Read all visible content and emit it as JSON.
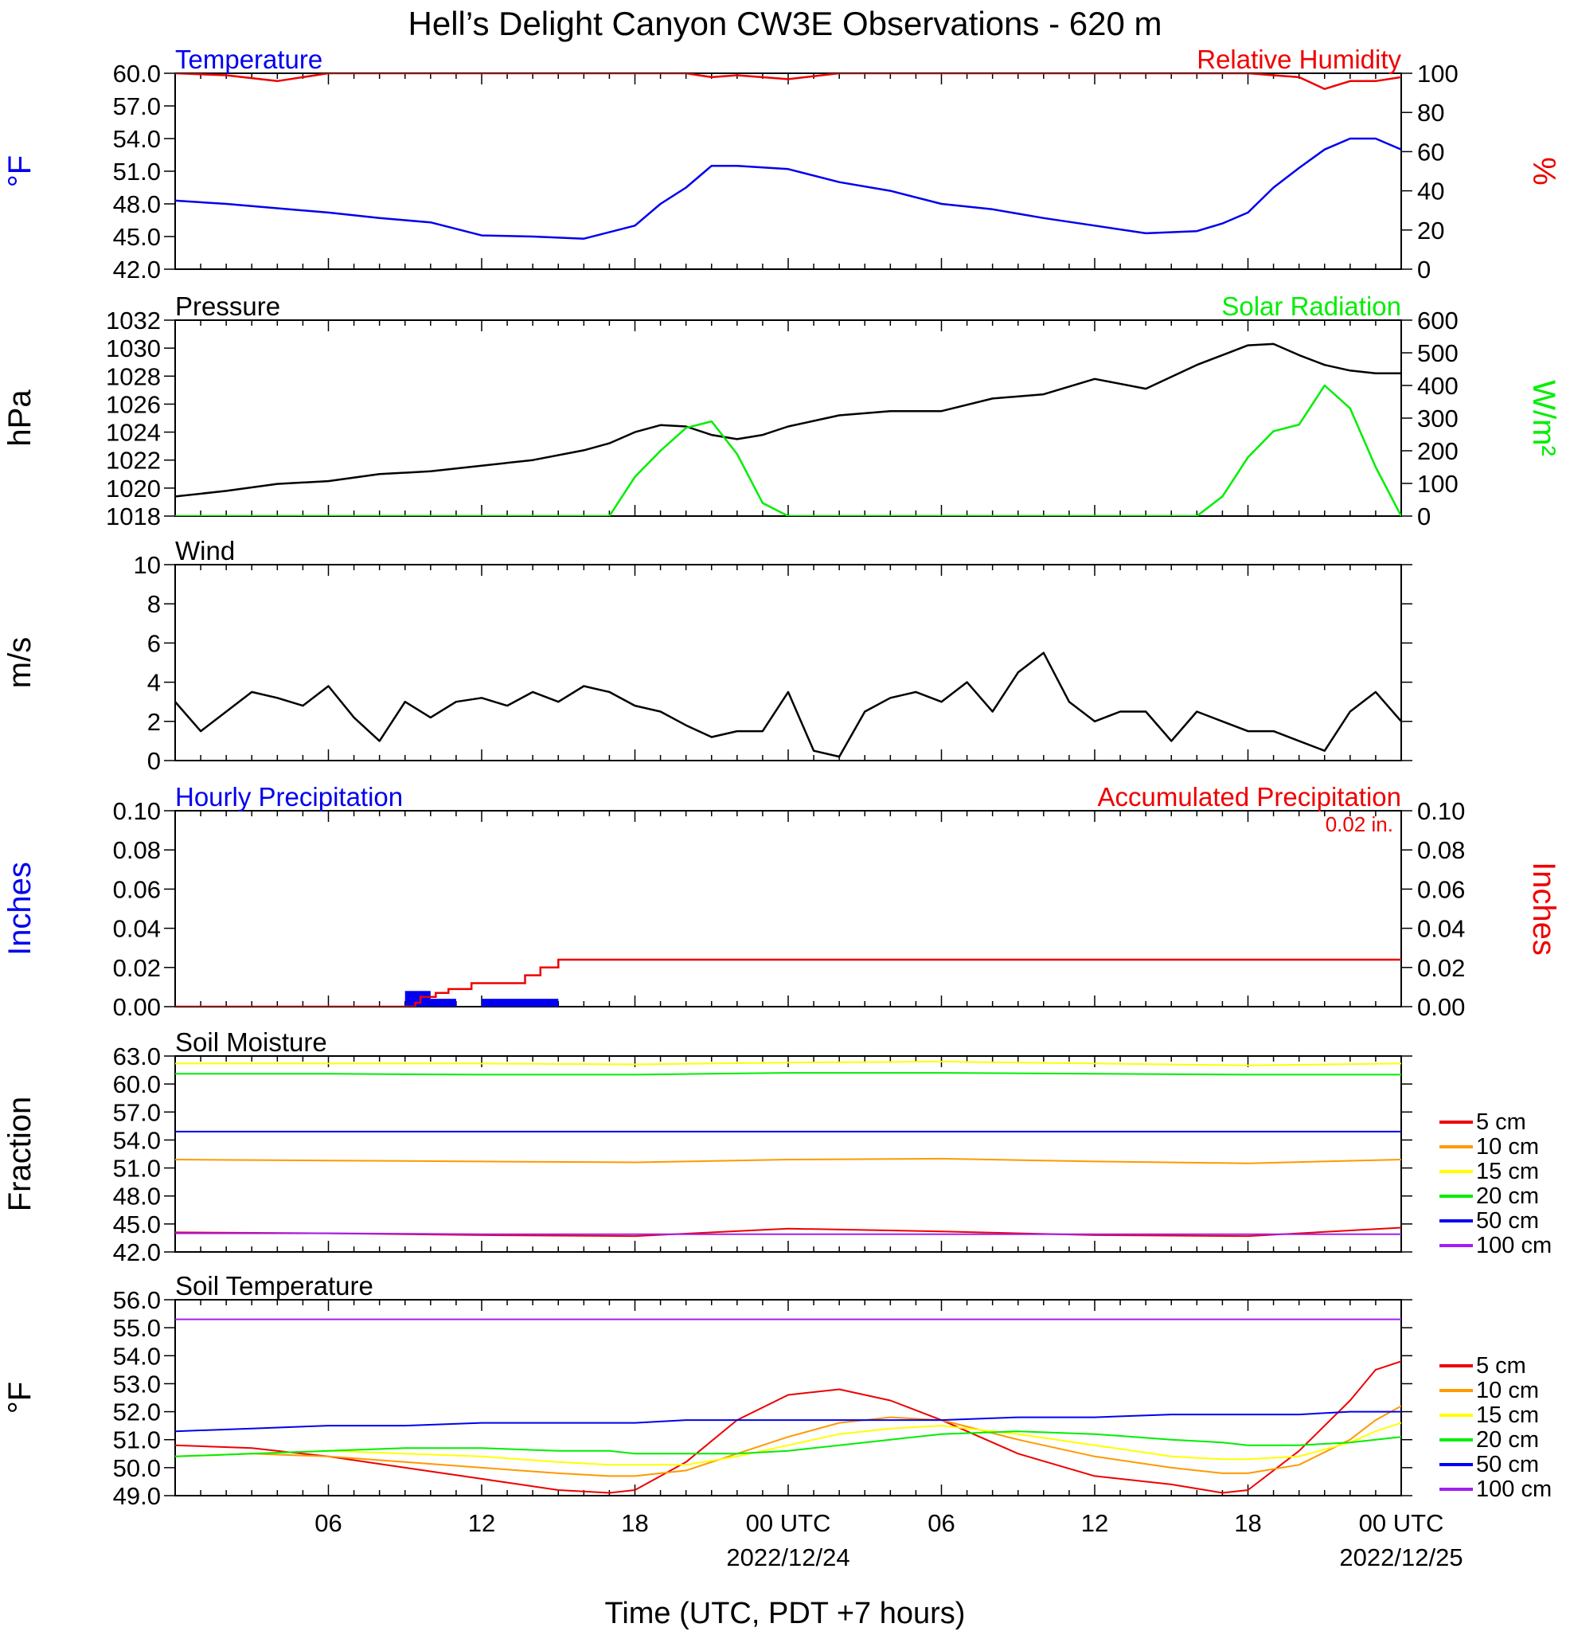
{
  "title": "Hell’s Delight Canyon CW3E Observations - 620 m",
  "x_axis": {
    "label": "Time (UTC, PDT +7 hours)",
    "ticks": [
      "06",
      "12",
      "18",
      "00 UTC",
      "06",
      "12",
      "18",
      "00 UTC"
    ],
    "dates": [
      "2022/12/24",
      "2022/12/25"
    ]
  },
  "colors": {
    "blue": "#0000ee",
    "red": "#ee0000",
    "green": "#00ee00",
    "black": "#000000",
    "orange": "#ff9900",
    "yellow": "#ffff00",
    "purple": "#a020f0"
  },
  "chart_data": [
    {
      "type": "line",
      "title_left": "Temperature",
      "title_right": "Relative Humidity",
      "ylabel_left": "°F",
      "ylabel_right": "%",
      "ylim_left": [
        42,
        60
      ],
      "ylim_right": [
        0,
        100
      ],
      "yticks_left": [
        "42.0",
        "45.0",
        "48.0",
        "51.0",
        "54.0",
        "57.0",
        "60.0"
      ],
      "yticks_right": [
        "0",
        "20",
        "40",
        "60",
        "80",
        "100"
      ],
      "x_hours": [
        0,
        2,
        4,
        6,
        8,
        10,
        12,
        14,
        16,
        18,
        19,
        20,
        21,
        22,
        24,
        26,
        28,
        30,
        32,
        34,
        36,
        38,
        40,
        41,
        42,
        43,
        44,
        45,
        46,
        47,
        48
      ],
      "series": [
        {
          "name": "Temperature",
          "axis": "left",
          "color": "#0000ee",
          "values": [
            48.3,
            48.0,
            47.6,
            47.2,
            46.7,
            46.3,
            45.1,
            45.0,
            44.8,
            46.0,
            48.0,
            49.5,
            51.5,
            51.5,
            51.2,
            50.0,
            49.2,
            48.0,
            47.5,
            46.7,
            46.0,
            45.3,
            45.5,
            46.2,
            47.2,
            49.5,
            51.3,
            53.0,
            54.0,
            54.0,
            53.0
          ]
        },
        {
          "name": "Relative Humidity",
          "axis": "right",
          "color": "#ee0000",
          "values": [
            100,
            99,
            96,
            100,
            100,
            100,
            100,
            100,
            100,
            100,
            100,
            100,
            98,
            99,
            97,
            100,
            100,
            100,
            100,
            100,
            100,
            100,
            100,
            100,
            100,
            99,
            98,
            92,
            96,
            96,
            98
          ]
        }
      ]
    },
    {
      "type": "line",
      "title_left": "Pressure",
      "title_right": "Solar Radiation",
      "ylabel_left": "hPa",
      "ylabel_right": "W/m²",
      "ylim_left": [
        1018,
        1032
      ],
      "ylim_right": [
        0,
        600
      ],
      "yticks_left": [
        "1018",
        "1020",
        "1022",
        "1024",
        "1026",
        "1028",
        "1030",
        "1032"
      ],
      "yticks_right": [
        "0",
        "100",
        "200",
        "300",
        "400",
        "500",
        "600"
      ],
      "x_hours": [
        0,
        2,
        4,
        6,
        8,
        10,
        12,
        14,
        16,
        17,
        18,
        19,
        20,
        21,
        22,
        23,
        24,
        25,
        26,
        28,
        30,
        32,
        34,
        36,
        38,
        40,
        41,
        42,
        43,
        44,
        45,
        46,
        47,
        48
      ],
      "series": [
        {
          "name": "Pressure",
          "axis": "left",
          "color": "#000000",
          "values": [
            1019.4,
            1019.8,
            1020.3,
            1020.5,
            1021.0,
            1021.2,
            1021.6,
            1022.0,
            1022.7,
            1023.2,
            1024.0,
            1024.5,
            1024.4,
            1023.8,
            1023.5,
            1023.8,
            1024.4,
            1024.8,
            1025.2,
            1025.5,
            1025.5,
            1026.4,
            1026.7,
            1027.8,
            1027.1,
            1028.8,
            1029.5,
            1030.2,
            1030.3,
            1029.5,
            1028.8,
            1028.4,
            1028.2,
            1028.2
          ]
        },
        {
          "name": "Solar Radiation",
          "axis": "right",
          "color": "#00ee00",
          "values": [
            0,
            0,
            0,
            0,
            0,
            0,
            0,
            0,
            0,
            0,
            120,
            200,
            270,
            290,
            190,
            40,
            0,
            0,
            0,
            0,
            0,
            0,
            0,
            0,
            0,
            0,
            60,
            180,
            260,
            280,
            400,
            330,
            150,
            0
          ]
        }
      ]
    },
    {
      "type": "line",
      "title_left": "Wind",
      "ylabel_left": "m/s",
      "ylim_left": [
        0,
        10
      ],
      "yticks_left": [
        "0",
        "2",
        "4",
        "6",
        "8",
        "10"
      ],
      "x_hours": [
        0,
        1,
        2,
        3,
        4,
        5,
        6,
        7,
        8,
        9,
        10,
        11,
        12,
        13,
        14,
        15,
        16,
        17,
        18,
        19,
        20,
        21,
        22,
        23,
        24,
        25,
        26,
        27,
        28,
        29,
        30,
        31,
        32,
        33,
        34,
        35,
        36,
        37,
        38,
        39,
        40,
        41,
        42,
        43,
        44,
        45,
        46,
        47,
        48
      ],
      "series": [
        {
          "name": "Wind speed",
          "axis": "left",
          "color": "#000000",
          "values": [
            3.0,
            1.5,
            2.5,
            3.5,
            3.2,
            2.8,
            3.8,
            2.2,
            1.0,
            3.0,
            2.2,
            3.0,
            3.2,
            2.8,
            3.5,
            3.0,
            3.8,
            3.5,
            2.8,
            2.5,
            1.8,
            1.2,
            1.5,
            1.5,
            3.5,
            0.5,
            0.2,
            2.5,
            3.2,
            3.5,
            3.0,
            4.0,
            2.5,
            4.5,
            5.5,
            3.0,
            2.0,
            2.5,
            2.5,
            1.0,
            2.5,
            2.0,
            1.5,
            1.5,
            1.0,
            0.5,
            2.5,
            3.5,
            2.0
          ]
        }
      ]
    },
    {
      "type": "bar",
      "title_left": "Hourly Precipitation",
      "title_right": "Accumulated Precipitation",
      "total_label": "0.02 in.",
      "ylabel_left": "Inches",
      "ylabel_right": "Inches",
      "ylim_left": [
        0,
        0.1
      ],
      "ylim_right": [
        0,
        0.1
      ],
      "yticks_left": [
        "0.00",
        "0.02",
        "0.04",
        "0.06",
        "0.08",
        "0.10"
      ],
      "yticks_right": [
        "0.00",
        "0.02",
        "0.04",
        "0.06",
        "0.08",
        "0.10"
      ],
      "hourly": [
        {
          "start_hour": 9,
          "end_hour": 10,
          "value": 0.008
        },
        {
          "start_hour": 10,
          "end_hour": 11,
          "value": 0.004
        },
        {
          "start_hour": 12,
          "end_hour": 15,
          "value": 0.004
        }
      ],
      "accumulated": {
        "x_hours": [
          0,
          9.0,
          9.4,
          9.6,
          10.2,
          10.7,
          11.6,
          13.2,
          13.7,
          14.3,
          15.0,
          48
        ],
        "values": [
          0,
          0,
          0.002,
          0.005,
          0.007,
          0.009,
          0.012,
          0.012,
          0.016,
          0.02,
          0.024,
          0.024
        ]
      }
    },
    {
      "type": "line",
      "title_left": "Soil Moisture",
      "ylabel_left": "Fraction",
      "ylim_left": [
        42,
        63
      ],
      "yticks_left": [
        "42.0",
        "45.0",
        "48.0",
        "51.0",
        "54.0",
        "57.0",
        "60.0",
        "63.0"
      ],
      "x_hours": [
        0,
        6,
        12,
        18,
        24,
        30,
        36,
        42,
        48
      ],
      "series": [
        {
          "name": "5 cm",
          "color": "#ee0000",
          "values": [
            44.1,
            44.0,
            43.8,
            43.7,
            44.5,
            44.2,
            43.8,
            43.7,
            44.6
          ]
        },
        {
          "name": "10 cm",
          "color": "#ff9900",
          "values": [
            51.9,
            51.8,
            51.7,
            51.6,
            51.9,
            52.0,
            51.7,
            51.5,
            51.9
          ]
        },
        {
          "name": "15 cm",
          "color": "#ffff00",
          "values": [
            62.2,
            62.2,
            62.2,
            62.1,
            62.3,
            62.4,
            62.2,
            62.0,
            62.2
          ]
        },
        {
          "name": "20 cm",
          "color": "#00ee00",
          "values": [
            61.1,
            61.1,
            61.0,
            61.0,
            61.2,
            61.2,
            61.1,
            61.0,
            61.0
          ]
        },
        {
          "name": "50 cm",
          "color": "#0000ee",
          "values": [
            54.9,
            54.9,
            54.9,
            54.9,
            54.9,
            54.9,
            54.9,
            54.9,
            54.9
          ]
        },
        {
          "name": "100 cm",
          "color": "#a020f0",
          "values": [
            44.0,
            44.0,
            43.9,
            43.9,
            43.9,
            43.9,
            43.9,
            43.9,
            43.9
          ]
        }
      ]
    },
    {
      "type": "line",
      "title_left": "Soil Temperature",
      "ylabel_left": "°F",
      "ylim_left": [
        49,
        56
      ],
      "yticks_left": [
        "49.0",
        "50.0",
        "51.0",
        "52.0",
        "53.0",
        "54.0",
        "55.0",
        "56.0"
      ],
      "x_hours": [
        0,
        3,
        6,
        9,
        12,
        15,
        17,
        18,
        20,
        22,
        24,
        26,
        28,
        30,
        33,
        36,
        39,
        41,
        42,
        44,
        46,
        47,
        48
      ],
      "series": [
        {
          "name": "5 cm",
          "color": "#ee0000",
          "values": [
            50.8,
            50.7,
            50.4,
            50.0,
            49.6,
            49.2,
            49.1,
            49.2,
            50.2,
            51.7,
            52.6,
            52.8,
            52.4,
            51.7,
            50.5,
            49.7,
            49.4,
            49.1,
            49.2,
            50.6,
            52.4,
            53.5,
            53.8
          ]
        },
        {
          "name": "10 cm",
          "color": "#ff9900",
          "values": [
            50.4,
            50.5,
            50.4,
            50.2,
            50.0,
            49.8,
            49.7,
            49.7,
            49.9,
            50.5,
            51.1,
            51.6,
            51.8,
            51.7,
            51.0,
            50.4,
            50.0,
            49.8,
            49.8,
            50.1,
            51.0,
            51.7,
            52.2
          ]
        },
        {
          "name": "15 cm",
          "color": "#ffff00",
          "values": [
            50.4,
            50.5,
            50.6,
            50.5,
            50.4,
            50.2,
            50.1,
            50.1,
            50.1,
            50.4,
            50.8,
            51.2,
            51.4,
            51.5,
            51.2,
            50.8,
            50.4,
            50.3,
            50.3,
            50.4,
            50.9,
            51.3,
            51.6
          ]
        },
        {
          "name": "20 cm",
          "color": "#00ee00",
          "values": [
            50.4,
            50.5,
            50.6,
            50.7,
            50.7,
            50.6,
            50.6,
            50.5,
            50.5,
            50.5,
            50.6,
            50.8,
            51.0,
            51.2,
            51.3,
            51.2,
            51.0,
            50.9,
            50.8,
            50.8,
            50.9,
            51.0,
            51.1
          ]
        },
        {
          "name": "50 cm",
          "color": "#0000ee",
          "values": [
            51.3,
            51.4,
            51.5,
            51.5,
            51.6,
            51.6,
            51.6,
            51.6,
            51.7,
            51.7,
            51.7,
            51.7,
            51.7,
            51.7,
            51.8,
            51.8,
            51.9,
            51.9,
            51.9,
            51.9,
            52.0,
            52.0,
            52.0
          ]
        },
        {
          "name": "100 cm",
          "color": "#a020f0",
          "values": [
            55.3,
            55.3,
            55.3,
            55.3,
            55.3,
            55.3,
            55.3,
            55.3,
            55.3,
            55.3,
            55.3,
            55.3,
            55.3,
            55.3,
            55.3,
            55.3,
            55.3,
            55.3,
            55.3,
            55.3,
            55.3,
            55.3,
            55.3
          ]
        }
      ]
    }
  ]
}
